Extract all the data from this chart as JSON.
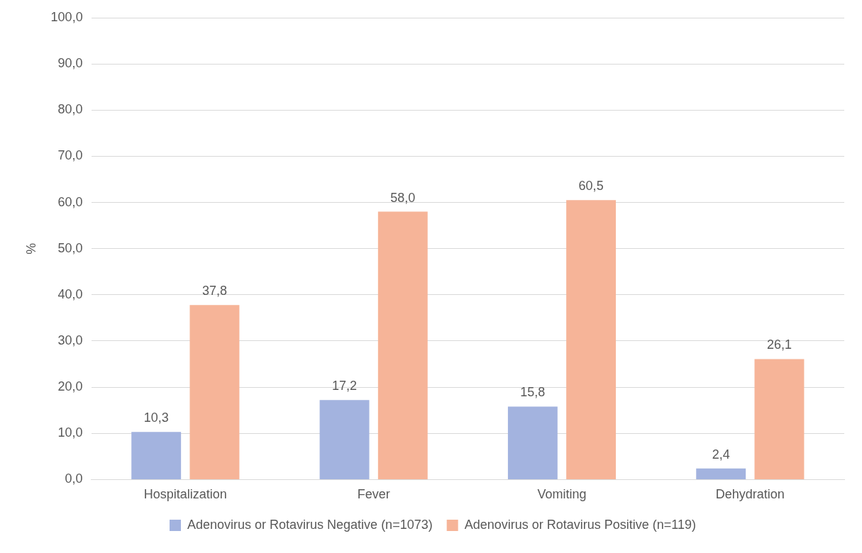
{
  "chart_data": {
    "type": "bar",
    "ylabel": "%",
    "categories": [
      "Hospitalization",
      "Fever",
      "Vomiting",
      "Dehydration"
    ],
    "series": [
      {
        "name": "Adenovirus or Rotavirus Negative (n=1073)",
        "color": "#a3b3df",
        "values": [
          10.3,
          17.2,
          15.8,
          2.4
        ],
        "value_labels": [
          "10,3",
          "17,2",
          "15,8",
          "2,4"
        ]
      },
      {
        "name": "Adenovirus or Rotavirus Positive (n=119)",
        "color": "#f6b498",
        "values": [
          37.8,
          58.0,
          60.5,
          26.1
        ],
        "value_labels": [
          "37,8",
          "58,0",
          "60,5",
          "26,1"
        ]
      }
    ],
    "ylim": [
      0,
      100
    ],
    "yticks": [
      {
        "value": 0,
        "label": "0,0"
      },
      {
        "value": 10,
        "label": "10,0"
      },
      {
        "value": 20,
        "label": "20,0"
      },
      {
        "value": 30,
        "label": "30,0"
      },
      {
        "value": 40,
        "label": "40,0"
      },
      {
        "value": 50,
        "label": "50,0"
      },
      {
        "value": 60,
        "label": "60,0"
      },
      {
        "value": 70,
        "label": "70,0"
      },
      {
        "value": 80,
        "label": "80,0"
      },
      {
        "value": 90,
        "label": "90,0"
      },
      {
        "value": 100,
        "label": "100,0"
      }
    ],
    "grid": "y",
    "legend": "bottom"
  }
}
